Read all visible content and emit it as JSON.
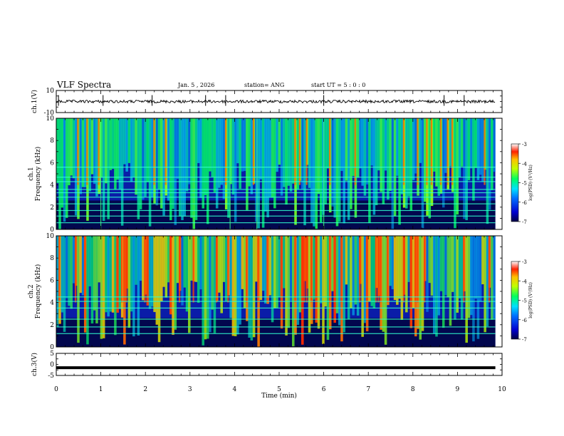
{
  "header": {
    "title": "VLF Spectra",
    "date": "Jan. 5 , 2026",
    "station": "station= ANG",
    "start": "start UT = 5 : 0 : 0"
  },
  "chart_data": [
    {
      "type": "line",
      "id": "ch1-waveform",
      "ylabel": "ch.1(V)",
      "ylim": [
        -10,
        10
      ],
      "ytick_labels": [
        "10",
        "-10"
      ],
      "baseline": 0,
      "spikes_min": [
        0.05,
        1.05,
        2.15,
        3.35,
        3.8,
        6.0,
        8.7,
        9.15
      ]
    },
    {
      "type": "heatmap",
      "id": "ch1-spectrogram",
      "ylabel": "ch.1\nFrequency (kHz)",
      "ylabel_line1": "ch.1",
      "ylabel_line2": "Frequency (kHz)",
      "ylim": [
        0,
        10
      ],
      "ytick_labels": [
        "0",
        "2",
        "4",
        "6",
        "8",
        "10"
      ],
      "colorbar": {
        "label": "log(PSD) (V²/Hz)",
        "range": [
          -7,
          -3
        ],
        "tick_labels": [
          "-3",
          "-4",
          "-5",
          "-6",
          "-7"
        ]
      },
      "bands_khz": [
        0.6,
        1.2,
        1.7,
        2.3,
        2.9,
        3.3,
        3.6,
        4.3,
        4.7,
        5.6
      ],
      "bright_lines_min": [
        1.0,
        3.9,
        4.5,
        6.0
      ]
    },
    {
      "type": "heatmap",
      "id": "ch2-spectrogram",
      "ylabel": "ch.2\nFrequency (kHz)",
      "ylabel_line1": "ch.2",
      "ylabel_line2": "Frequency (kHz)",
      "ylim": [
        0,
        10
      ],
      "ytick_labels": [
        "0",
        "2",
        "4",
        "6",
        "8",
        "10"
      ],
      "colorbar": {
        "label": "log(PSD) (V²/Hz)",
        "range": [
          -7,
          -3
        ],
        "tick_labels": [
          "-3",
          "-4",
          "-5",
          "-6",
          "-7"
        ]
      },
      "bands_khz": [
        1.2,
        1.8,
        2.5,
        3.5,
        4.1,
        4.5
      ]
    },
    {
      "type": "line",
      "id": "ch3-waveform",
      "ylabel": "ch.3(V)",
      "ylim": [
        -5,
        5
      ],
      "ytick_labels": [
        "5",
        "0",
        "-5"
      ],
      "baseline": -1.5
    }
  ],
  "xaxis": {
    "label": "Time (min)",
    "range": [
      0,
      10
    ],
    "data_end": 9.85,
    "tick_labels": [
      "0",
      "1",
      "2",
      "3",
      "4",
      "5",
      "6",
      "7",
      "8",
      "9",
      "10"
    ]
  },
  "colors": {
    "axis": "#000000",
    "background": "#ffffff"
  }
}
